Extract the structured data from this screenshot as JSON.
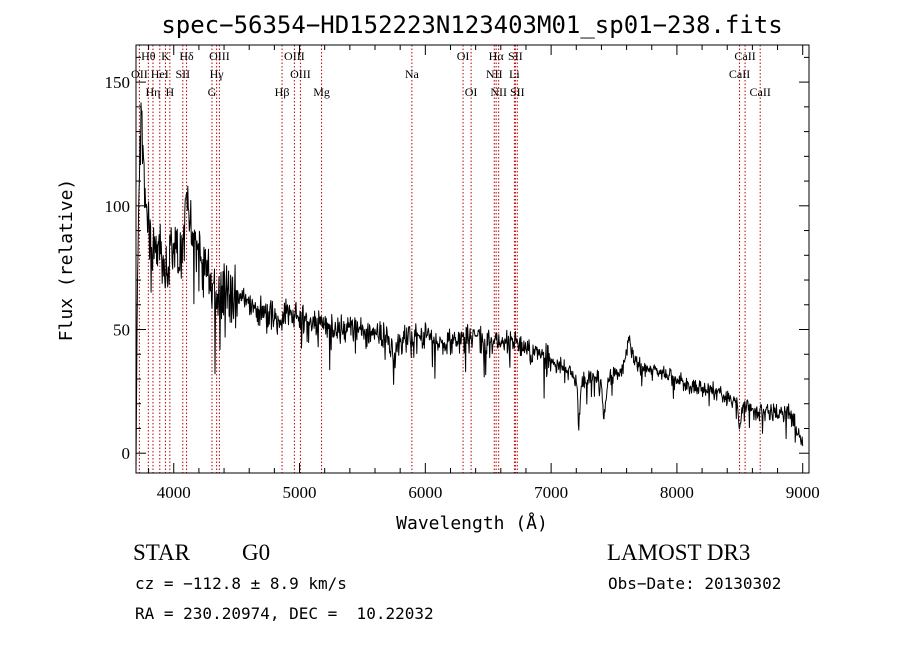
{
  "chart_data": {
    "type": "line",
    "title": "spec−56354−HD152223N123403M01_sp01−238.fits",
    "xlabel": "Wavelength (Å)",
    "ylabel": "Flux (relative)",
    "xlim": [
      3700,
      9050
    ],
    "ylim": [
      -8,
      165
    ],
    "x_ticks": [
      4000,
      5000,
      6000,
      7000,
      8000,
      9000
    ],
    "y_ticks": [
      0,
      50,
      100,
      150
    ],
    "y_tick_labels": [
      "0",
      "50",
      "100",
      "150"
    ],
    "grid": false,
    "series": [
      {
        "name": "flux",
        "color": "#000000",
        "anchors_x": [
          3700,
          3720,
          3740,
          3760,
          3780,
          3800,
          3850,
          3900,
          3950,
          4000,
          4050,
          4100,
          4150,
          4200,
          4250,
          4300,
          4350,
          4400,
          4500,
          4600,
          4700,
          4800,
          4850,
          4900,
          5000,
          5100,
          5200,
          5300,
          5400,
          5500,
          5600,
          5700,
          5750,
          5800,
          5900,
          6000,
          6100,
          6200,
          6300,
          6400,
          6500,
          6600,
          6700,
          6800,
          6900,
          7000,
          7100,
          7150,
          7200,
          7220,
          7240,
          7300,
          7350,
          7400,
          7420,
          7450,
          7500,
          7550,
          7600,
          7620,
          7640,
          7700,
          7800,
          7900,
          8000,
          8100,
          8200,
          8300,
          8400,
          8480,
          8500,
          8520,
          8560,
          8600,
          8660,
          8700,
          8800,
          8900,
          8950,
          9000
        ],
        "anchors_y": [
          2,
          105,
          135,
          120,
          100,
          88,
          85,
          82,
          72,
          86,
          78,
          95,
          88,
          80,
          72,
          70,
          62,
          68,
          62,
          60,
          57,
          56,
          52,
          57,
          55,
          54,
          52,
          50,
          50,
          49,
          48,
          46,
          38,
          46,
          47,
          47,
          46,
          45,
          47,
          46,
          44,
          46,
          44,
          42,
          40,
          37,
          35,
          32,
          30,
          12,
          28,
          30,
          32,
          28,
          12,
          30,
          32,
          32,
          40,
          48,
          40,
          35,
          33,
          32,
          29,
          27,
          27,
          25,
          22,
          20,
          10,
          20,
          19,
          18,
          16,
          17,
          16,
          16,
          10,
          4
        ],
        "noise_amplitude_approx": 8
      }
    ],
    "spectral_lines": [
      {
        "label": "Hθ",
        "wavelength": 3798,
        "row": 0
      },
      {
        "label": "K",
        "wavelength": 3934,
        "row": 0
      },
      {
        "label": "Hδ",
        "wavelength": 4102,
        "row": 0
      },
      {
        "label": "OIII",
        "wavelength": 4363,
        "row": 0
      },
      {
        "label": "OIII",
        "wavelength": 4959,
        "row": 0
      },
      {
        "label": "OI",
        "wavelength": 6300,
        "row": 0
      },
      {
        "label": "Hα",
        "wavelength": 6563,
        "row": 0
      },
      {
        "label": "SII",
        "wavelength": 6716,
        "row": 0
      },
      {
        "label": "CaII",
        "wavelength": 8542,
        "row": 0
      },
      {
        "label": "OII",
        "wavelength": 3727,
        "row": 1
      },
      {
        "label": "HeI",
        "wavelength": 3889,
        "row": 1
      },
      {
        "label": "SII",
        "wavelength": 4072,
        "row": 1
      },
      {
        "label": "Hγ",
        "wavelength": 4341,
        "row": 1
      },
      {
        "label": "OIII",
        "wavelength": 5007,
        "row": 1
      },
      {
        "label": "Na",
        "wavelength": 5893,
        "row": 1
      },
      {
        "label": "NII",
        "wavelength": 6548,
        "row": 1
      },
      {
        "label": "Li",
        "wavelength": 6708,
        "row": 1
      },
      {
        "label": "CaII",
        "wavelength": 8498,
        "row": 1
      },
      {
        "label": "Hη",
        "wavelength": 3835,
        "row": 2
      },
      {
        "label": "H",
        "wavelength": 3969,
        "row": 2
      },
      {
        "label": "G",
        "wavelength": 4304,
        "row": 2
      },
      {
        "label": "Hβ",
        "wavelength": 4861,
        "row": 2
      },
      {
        "label": "Mg",
        "wavelength": 5175,
        "row": 2
      },
      {
        "label": "OI",
        "wavelength": 6364,
        "row": 2
      },
      {
        "label": "NII",
        "wavelength": 6583,
        "row": 2
      },
      {
        "label": "SII",
        "wavelength": 6731,
        "row": 2
      },
      {
        "label": "CaII",
        "wavelength": 8662,
        "row": 2
      }
    ],
    "line_marker_color": "#c00000"
  },
  "info": {
    "class_label": "STAR",
    "subclass": "G0",
    "survey": "LAMOST DR3",
    "redshift": "cz = −112.8 ± 8.9 km/s",
    "obs_date": "Obs−Date: 20130302",
    "coords": "RA = 230.20974, DEC =  10.22032"
  }
}
